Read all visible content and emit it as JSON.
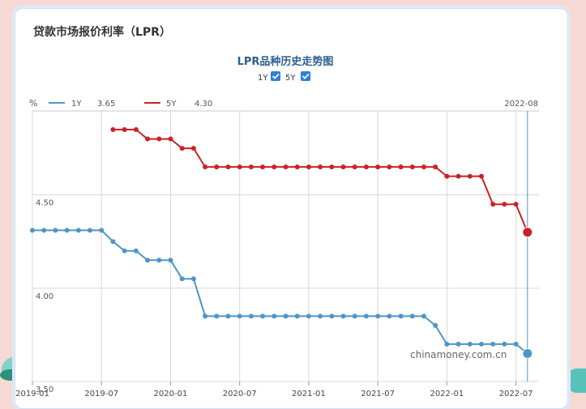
{
  "page_title": "贷款市场报价利率（LPR）",
  "chart_data": {
    "type": "line",
    "title": "LPR品种历史走势图",
    "checkboxes": [
      {
        "label": "1Y",
        "checked": true
      },
      {
        "label": "5Y",
        "checked": true
      }
    ],
    "ylabel": "%",
    "ylim": [
      3.5,
      4.95
    ],
    "yticks": [
      "4.50",
      "4.00",
      "3.50"
    ],
    "xlim": [
      0,
      44
    ],
    "xticks": [
      {
        "pos": 0,
        "label": "2019-01"
      },
      {
        "pos": 6,
        "label": "2019-07"
      },
      {
        "pos": 12,
        "label": "2020-01"
      },
      {
        "pos": 18,
        "label": "2020-07"
      },
      {
        "pos": 24,
        "label": "2021-01"
      },
      {
        "pos": 30,
        "label": "2021-07"
      },
      {
        "pos": 36,
        "label": "2022-01"
      },
      {
        "pos": 42,
        "label": "2022-07"
      }
    ],
    "cursor_label": "2022-08",
    "cursor_pos": 43,
    "watermark": "chinamoney.com.cn",
    "series": [
      {
        "name": "1Y",
        "current": "3.65",
        "color": "#4f95c8",
        "start": 0,
        "values": [
          4.31,
          4.31,
          4.31,
          4.31,
          4.31,
          4.31,
          4.31,
          4.25,
          4.2,
          4.2,
          4.15,
          4.15,
          4.15,
          4.05,
          4.05,
          3.85,
          3.85,
          3.85,
          3.85,
          3.85,
          3.85,
          3.85,
          3.85,
          3.85,
          3.85,
          3.85,
          3.85,
          3.85,
          3.85,
          3.85,
          3.85,
          3.85,
          3.85,
          3.85,
          3.85,
          3.8,
          3.7,
          3.7,
          3.7,
          3.7,
          3.7,
          3.7,
          3.7,
          3.65
        ]
      },
      {
        "name": "5Y",
        "current": "4.30",
        "color": "#cc2027",
        "start": 7,
        "values": [
          4.85,
          4.85,
          4.85,
          4.8,
          4.8,
          4.8,
          4.75,
          4.75,
          4.65,
          4.65,
          4.65,
          4.65,
          4.65,
          4.65,
          4.65,
          4.65,
          4.65,
          4.65,
          4.65,
          4.65,
          4.65,
          4.65,
          4.65,
          4.65,
          4.65,
          4.65,
          4.65,
          4.65,
          4.65,
          4.6,
          4.6,
          4.6,
          4.6,
          4.45,
          4.45,
          4.45,
          4.3
        ]
      }
    ]
  }
}
